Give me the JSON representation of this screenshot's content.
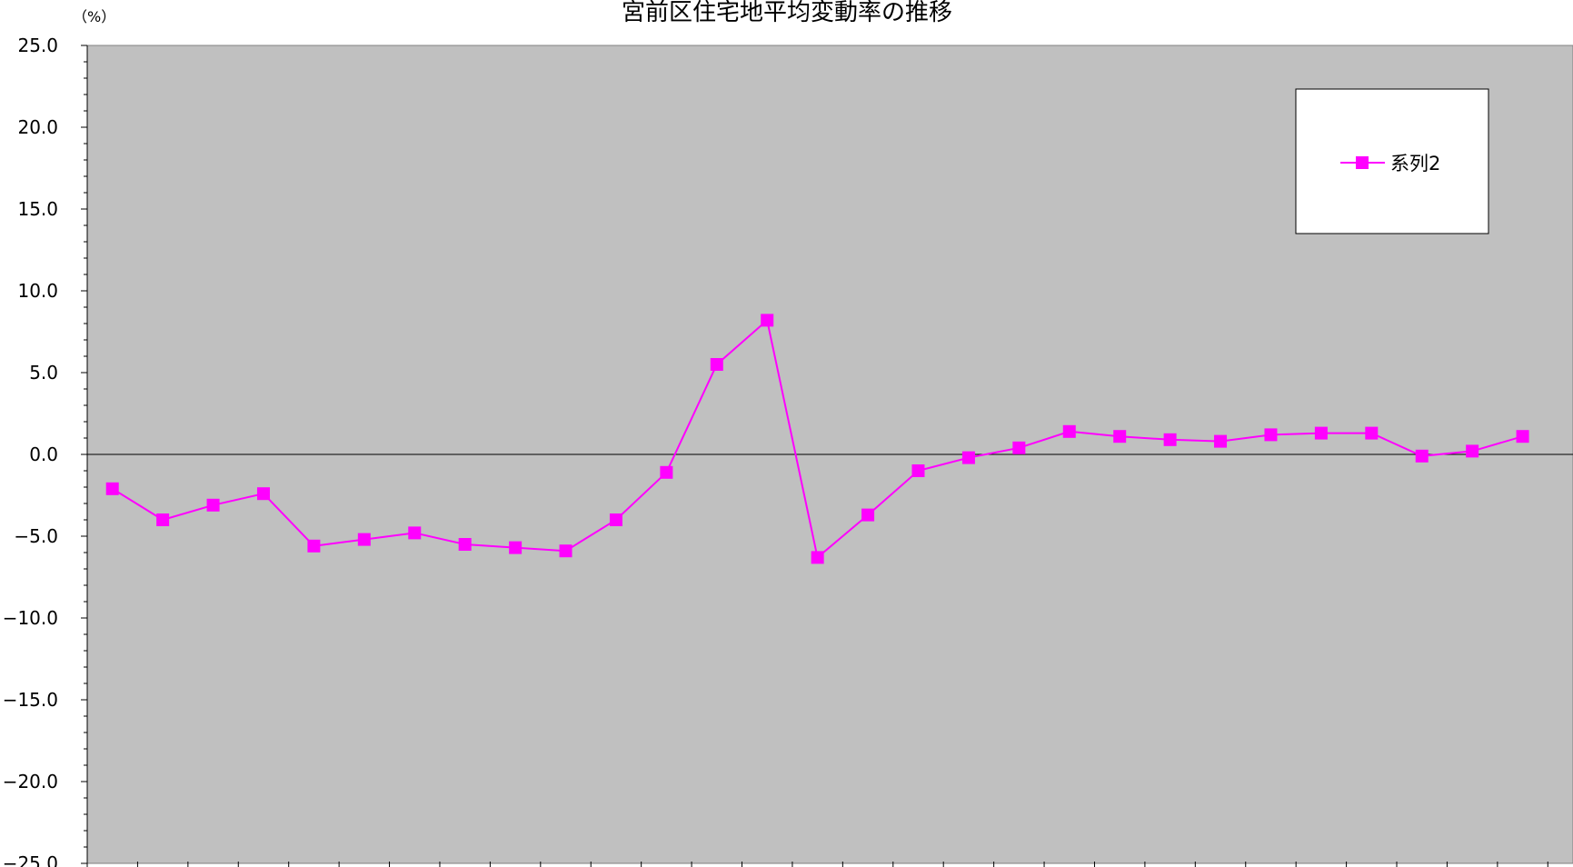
{
  "chart_data": {
    "type": "line",
    "title": "宮前区住宅地平均変動率の推移",
    "ylabel": "（%）",
    "xlabel": "",
    "ylim": [
      -25,
      25
    ],
    "y_ticks": [
      "25.0",
      "20.0",
      "15.0",
      "10.0",
      "5.0",
      "0.0",
      "−5.0",
      "−10.0",
      "−15.0",
      "−20.0",
      "−25.0"
    ],
    "grid": false,
    "legend_position": "top-right",
    "series": [
      {
        "name": "系列2",
        "color": "#ff00ff",
        "marker": "square",
        "values": [
          -2.1,
          -4.0,
          -3.1,
          -2.4,
          -5.6,
          -5.2,
          -4.8,
          -5.5,
          -5.7,
          -5.9,
          -4.0,
          -1.1,
          5.5,
          8.2,
          -6.3,
          -3.7,
          -1.0,
          -0.2,
          0.4,
          1.4,
          1.1,
          0.9,
          0.8,
          1.2,
          1.3,
          1.3,
          -0.1,
          0.2,
          1.1
        ]
      }
    ]
  },
  "colors": {
    "plot_background": "#c0c0c0",
    "series": "#ff00ff"
  }
}
